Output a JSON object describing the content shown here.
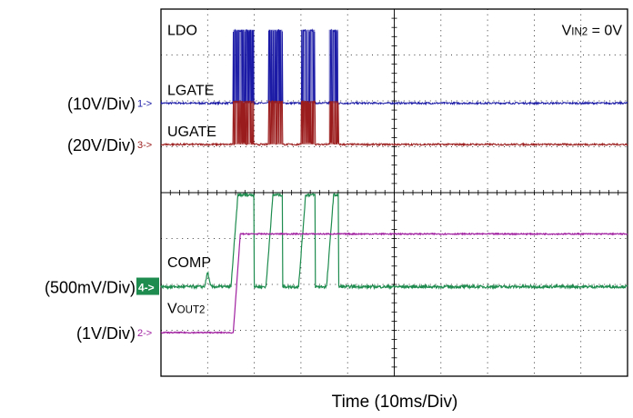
{
  "chart_data": {
    "type": "line",
    "title": "",
    "xlabel": "Time (10ms/Div)",
    "ylabel": "",
    "grid": true,
    "x_divisions": 10,
    "y_divisions": 8,
    "condition": "V_IN2 = 0V",
    "condition_parts": {
      "v": "V",
      "sub": "IN2",
      "rest": " = 0V"
    },
    "channel_scales": [
      {
        "marker": "1->",
        "scale": "(10V/Div)",
        "color": "#1a1aa6"
      },
      {
        "marker": "3->",
        "scale": "(20V/Div)",
        "color": "#9b1c1c"
      },
      {
        "marker": "4->",
        "scale": "(500mV/Div)",
        "color": "#1e8c4e"
      },
      {
        "marker": "2->",
        "scale": "(1V/Div)",
        "color": "#a020a0"
      }
    ],
    "traces": [
      {
        "name": "LDO",
        "label_parts": {
          "v": "LDO",
          "sub": ""
        }
      },
      {
        "name": "LGATE",
        "label_parts": {
          "v": "LGATE",
          "sub": ""
        }
      },
      {
        "name": "UGATE",
        "label_parts": {
          "v": "UGATE",
          "sub": ""
        }
      },
      {
        "name": "COMP",
        "label_parts": {
          "v": "COMP",
          "sub": ""
        }
      },
      {
        "name": "V_OUT2",
        "label_parts": {
          "v": "V",
          "sub": "OUT2"
        }
      }
    ],
    "series": [
      {
        "name": "LGATE",
        "color": "#1a1aa6",
        "baseline_div": 5.95,
        "high_div": 7.55,
        "burst_windows_div": [
          [
            1.55,
            2.0
          ],
          [
            2.3,
            2.6
          ],
          [
            3.0,
            3.3
          ],
          [
            3.6,
            3.8
          ]
        ]
      },
      {
        "name": "UGATE",
        "color": "#9b1c1c",
        "baseline_div": 5.05,
        "high_div": 6.0,
        "burst_windows_div": [
          [
            1.55,
            2.0
          ],
          [
            2.3,
            2.6
          ],
          [
            3.0,
            3.3
          ],
          [
            3.6,
            3.8
          ]
        ]
      },
      {
        "name": "COMP",
        "color": "#1e8c4e",
        "baseline_div": 1.95,
        "high_div": 3.95,
        "events_div": {
          "bump_at": 1.0,
          "rise_start": 1.55,
          "high_windows": [
            [
              1.55,
              2.0
            ],
            [
              2.3,
              2.6
            ],
            [
              3.0,
              3.3
            ],
            [
              3.6,
              3.8
            ]
          ]
        }
      },
      {
        "name": "V_OUT2",
        "color": "#a020a0",
        "baseline_div": 0.95,
        "high_div": 3.1,
        "rise_window_div": [
          1.55,
          1.7
        ]
      }
    ]
  }
}
